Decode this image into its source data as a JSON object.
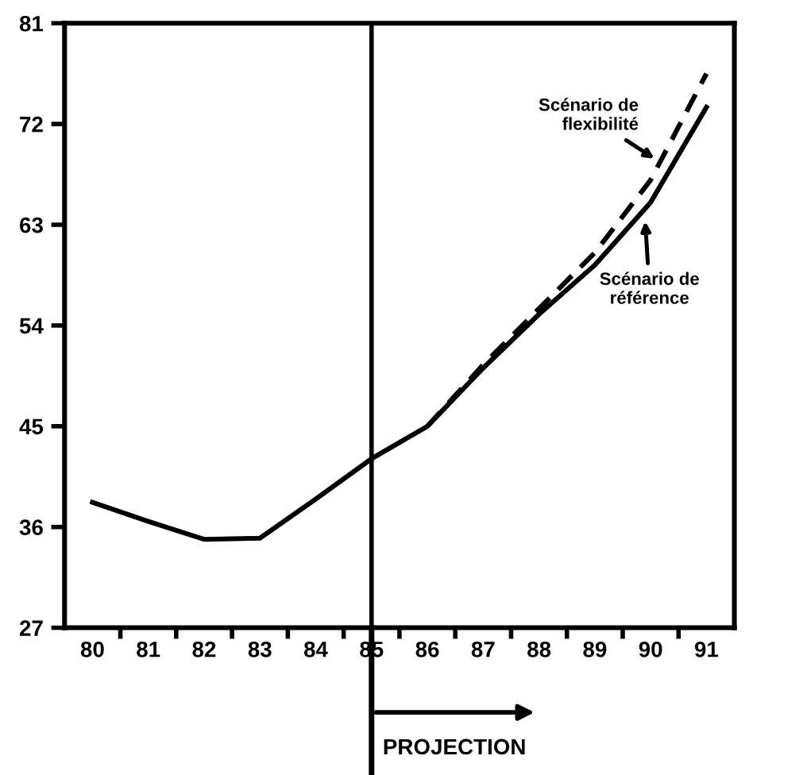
{
  "chart_data": {
    "type": "line",
    "x": [
      80,
      81,
      82,
      83,
      84,
      85,
      86,
      87,
      88,
      89,
      90,
      91
    ],
    "series": [
      {
        "name": "Scénario de\nréférence",
        "color": "#000000",
        "line_style": "solid",
        "values": [
          38.2,
          36.5,
          34.9,
          35,
          38.5,
          42.1,
          45,
          50.2,
          55,
          59.4,
          65,
          73.5
        ]
      },
      {
        "name": "Scénario de\nflexibilité",
        "color": "#000000",
        "line_style": "dashed",
        "x": [
          86,
          87,
          88,
          89,
          90,
          91
        ],
        "values": [
          45,
          50.5,
          55.5,
          60.5,
          67,
          76.5
        ]
      }
    ],
    "xlim": [
      79.5,
      91.5
    ],
    "ylim": [
      27,
      81
    ],
    "xticks": [
      80,
      81,
      82,
      83,
      84,
      85,
      86,
      87,
      88,
      89,
      90,
      91,
      {
        "value": 80.5,
        "label": null
      },
      {
        "value": 81.5,
        "label": null
      },
      {
        "value": 82.5,
        "label": null
      },
      {
        "value": 83.5,
        "label": null
      },
      {
        "value": 84.5,
        "label": null
      },
      {
        "value": 85.5,
        "label": null
      },
      {
        "value": 86.5,
        "label": null
      },
      {
        "value": 87.5,
        "label": null
      },
      {
        "value": 88.5,
        "label": null
      },
      {
        "value": 89.5,
        "label": null
      },
      {
        "value": 90.5,
        "label": null
      }
    ],
    "yticks": [
      27,
      36,
      45,
      54,
      63,
      72,
      81
    ],
    "ref_lines": [
      {
        "axis": "x",
        "value": 85,
        "label": "PROJECTION",
        "color": "#000000"
      }
    ],
    "grid": false,
    "legend": "right",
    "marker": "none"
  }
}
